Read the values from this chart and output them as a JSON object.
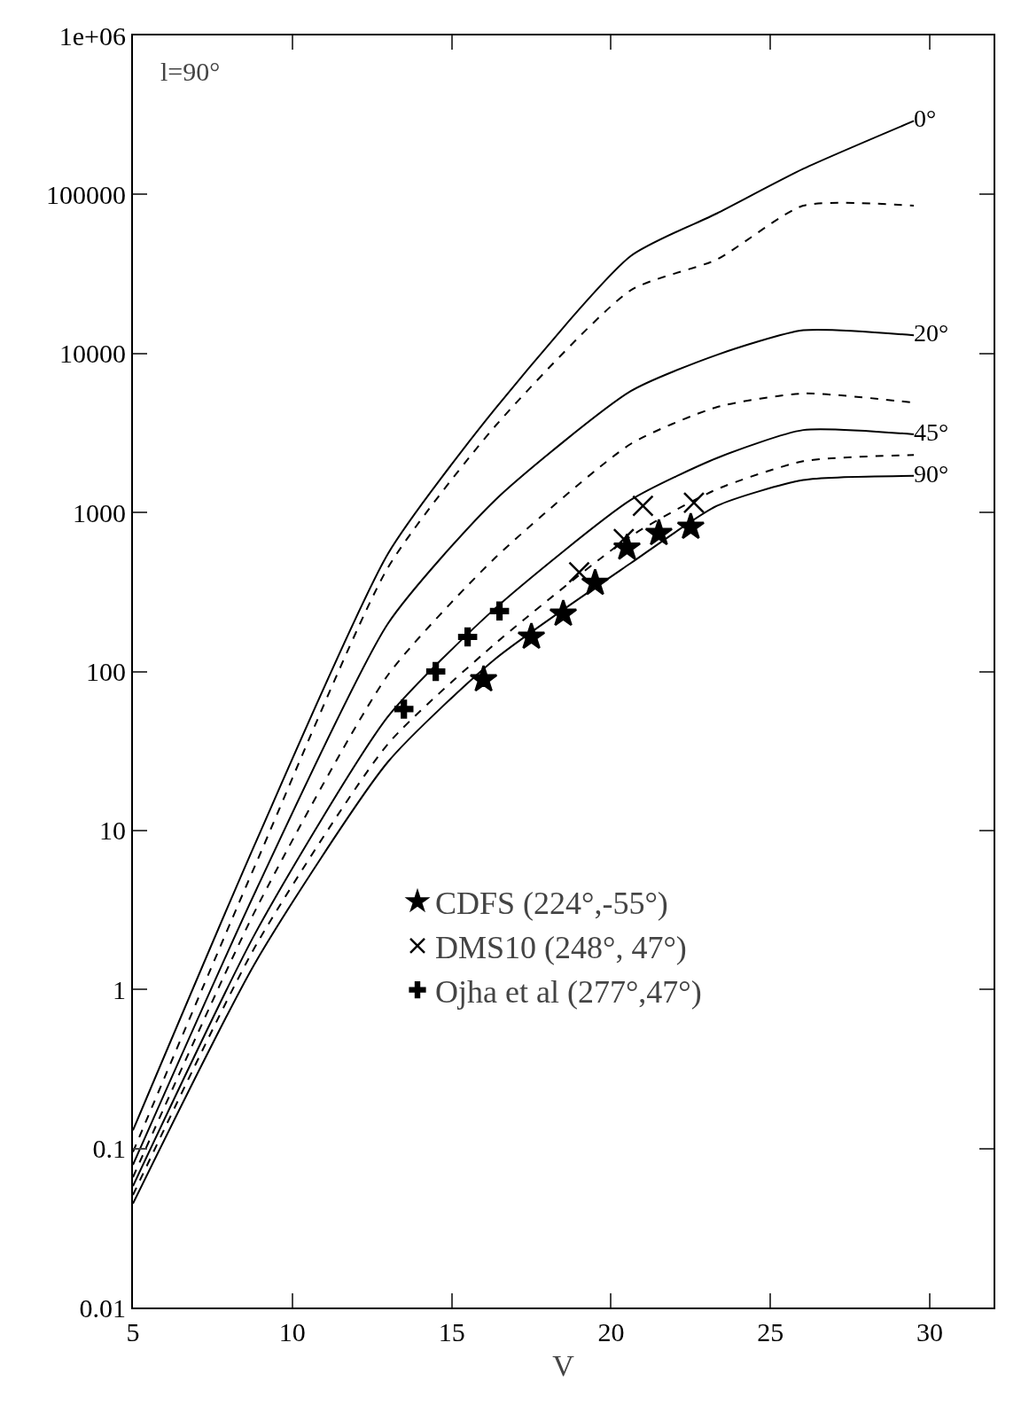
{
  "chart_data": {
    "type": "line",
    "xlabel": "V",
    "annotations": [
      "l=90°"
    ],
    "x": [
      5,
      8.86,
      13,
      16.37,
      20.62,
      23.32,
      26.03,
      29.5
    ],
    "series": [
      {
        "name": "0°",
        "color": "#000000",
        "line_style": "solid",
        "values": [
          0.13,
          8.5,
          550,
          4500,
          41000,
          76000,
          145000,
          290000
        ]
      },
      {
        "color": "#000000",
        "line_style": "dashed",
        "values": [
          0.095,
          6.2,
          450,
          3500,
          25000,
          39000,
          85000,
          85000
        ]
      },
      {
        "name": "20°",
        "color": "#000000",
        "line_style": "solid",
        "values": [
          0.079,
          4.2,
          200,
          1200,
          5800,
          9800,
          14000,
          13000
        ]
      },
      {
        "color": "#000000",
        "line_style": "dashed",
        "values": [
          0.066,
          3.2,
          95,
          520,
          2700,
          4600,
          5600,
          4900
        ]
      },
      {
        "name": "45°",
        "color": "#000000",
        "line_style": "solid",
        "values": [
          0.058,
          2.3,
          52,
          250,
          1200,
          2200,
          3300,
          3100
        ]
      },
      {
        "color": "#000000",
        "line_style": "dashed",
        "values": [
          0.051,
          1.9,
          35,
          150,
          710,
          1400,
          2100,
          2300
        ]
      },
      {
        "name": "90°",
        "color": "#000000",
        "line_style": "solid",
        "values": [
          0.045,
          1.5,
          27,
          120,
          480,
          1100,
          1600,
          1700
        ]
      },
      {
        "name": "CDFS (224°,-55°)",
        "type": "scatter",
        "marker": "star",
        "color": "#000000",
        "x": [
          22.5,
          21.5,
          20.5,
          19.5,
          18.5,
          17.5,
          16
        ],
        "values": [
          810,
          740,
          600,
          360,
          230,
          165,
          89
        ]
      },
      {
        "name": "DMS10 (248°, 47°)",
        "type": "scatter",
        "marker": "cross",
        "color": "#000000",
        "x": [
          22.6,
          21,
          20.4,
          19
        ],
        "values": [
          1150,
          1100,
          680,
          420
        ]
      },
      {
        "name": "Ojha et al (277°,47°)",
        "type": "scatter",
        "color": "#000000",
        "x": [
          16.5,
          15.5,
          14.5,
          13.5
        ],
        "values": [
          240,
          165,
          100,
          58
        ]
      }
    ],
    "xlim": [
      5,
      32
    ],
    "xticks": [
      5,
      10,
      15,
      20,
      25,
      30
    ],
    "ylim": [
      0.01,
      1000000
    ],
    "yticks": [
      0.01,
      0.1,
      1,
      10,
      100,
      1000,
      10000,
      100000,
      {
        "value": 1000000,
        "label": "1e+06"
      }
    ],
    "log": "y",
    "grid": false,
    "legend": "bottom"
  }
}
